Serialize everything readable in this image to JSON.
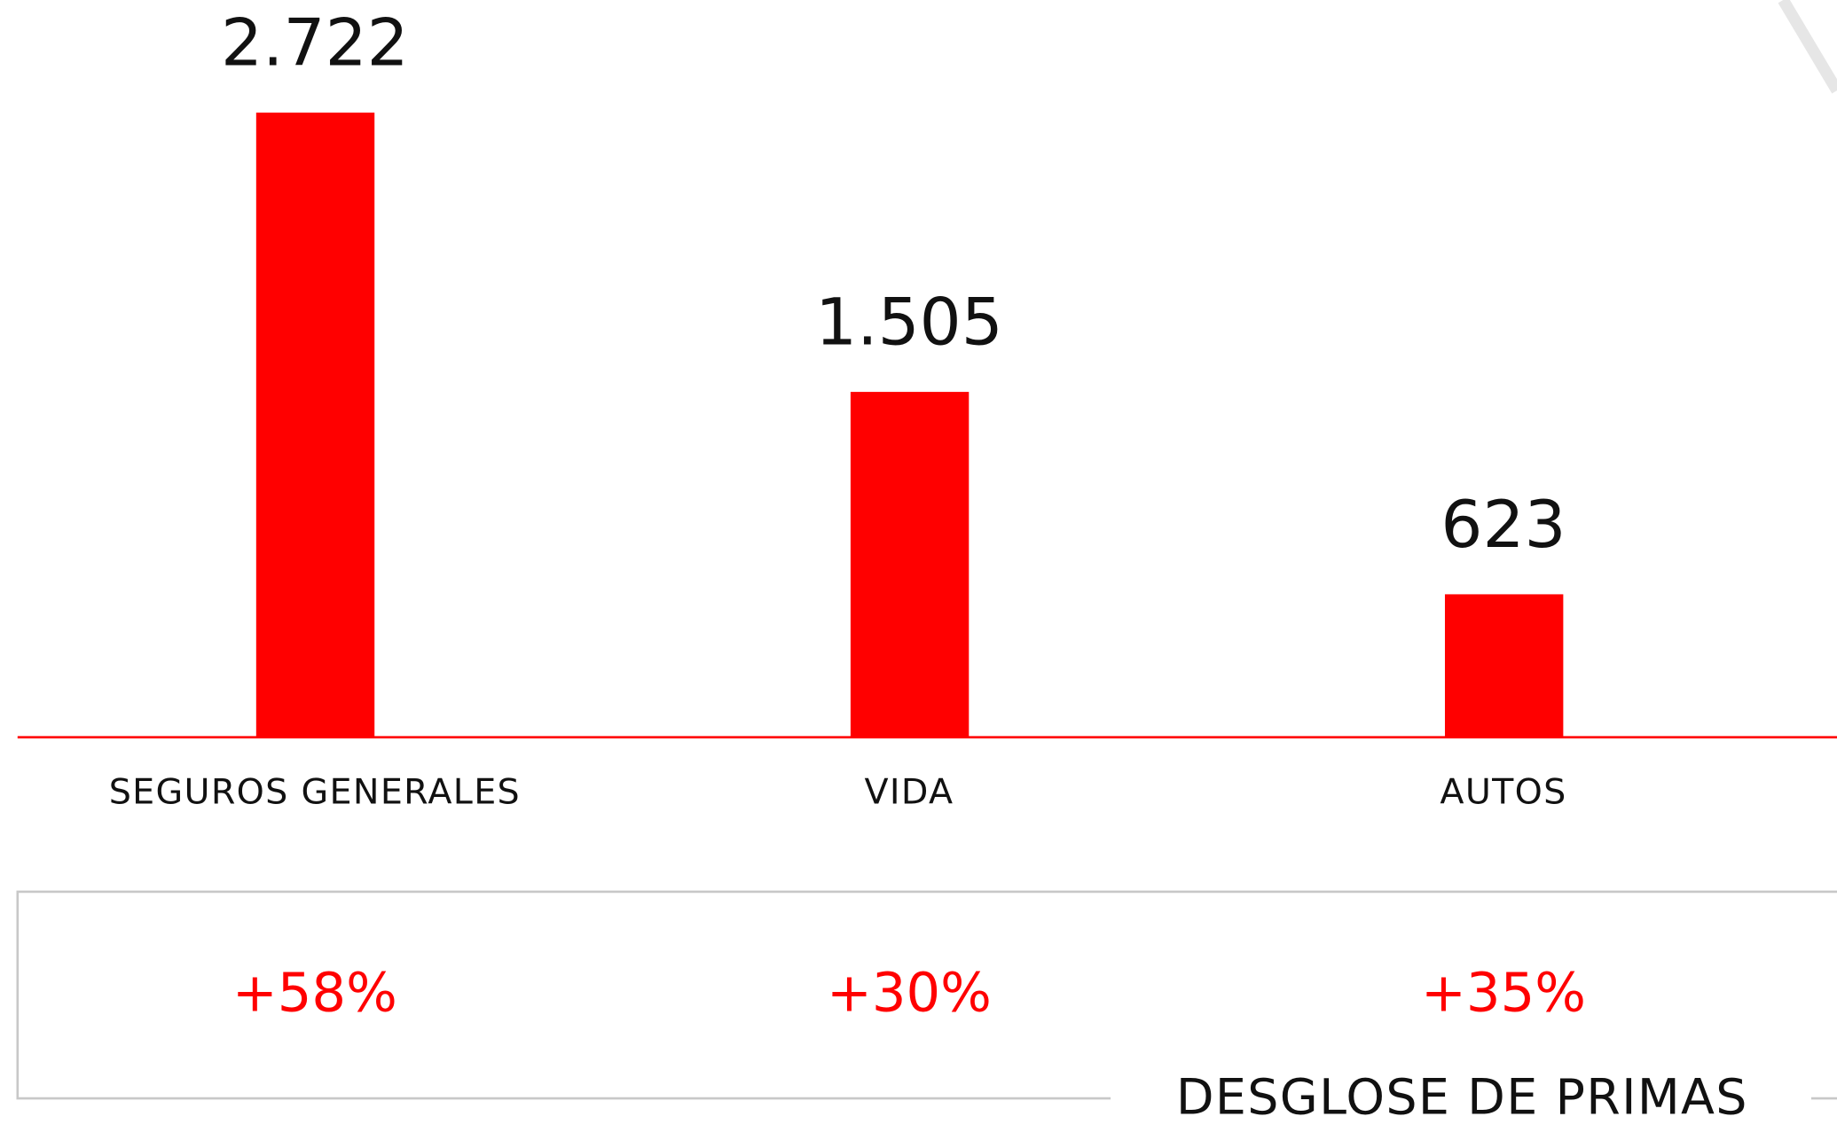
{
  "chart_data": {
    "type": "bar",
    "title": "DESGLOSE DE PRIMAS",
    "categories": [
      "SEGUROS GENERALES",
      "VIDA",
      "AUTOS"
    ],
    "values": [
      2722,
      1505,
      623
    ],
    "value_labels": [
      "2.722",
      "1.505",
      "623"
    ],
    "color": "#ff0000",
    "changes": {
      "values": [
        58,
        30,
        35
      ],
      "value_labels": [
        "+58%",
        "+30%",
        "+35%"
      ],
      "color": "#ff0000"
    }
  }
}
